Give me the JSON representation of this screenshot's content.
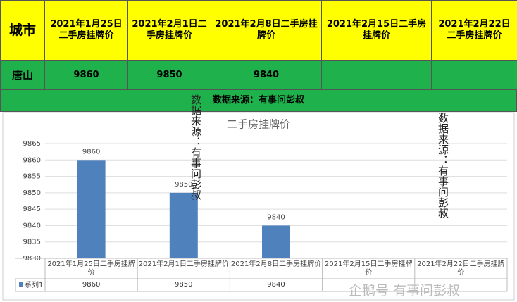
{
  "table": {
    "header": [
      "城市",
      "2021年1月25日二手房挂牌价",
      "2021年2月1日二手房挂牌价",
      "2021年2月8日二手房挂牌价",
      "2021年2月15日二手房挂牌价",
      "2021年2月22日二手房挂牌价"
    ],
    "city": "唐山",
    "values": [
      9860,
      9850,
      9840
    ],
    "source": "数据来源：有事问彭叔"
  },
  "chart_data": {
    "type": "bar",
    "title": "二手房挂牌价",
    "categories": [
      "2021年1月25日二手房挂牌价",
      "2021年2月1日二手房挂牌价",
      "2021年2月8日二手房挂牌价",
      "2021年2月15日二手房挂牌价",
      "2021年2月22日二手房挂牌价"
    ],
    "series": [
      {
        "name": "系列1",
        "color": "#4f81bd",
        "values": [
          9860,
          9850,
          9840,
          null,
          null
        ]
      }
    ],
    "ylim": [
      9830,
      9865
    ],
    "yticks": [
      9830,
      9835,
      9840,
      9845,
      9850,
      9855,
      9860,
      9865
    ],
    "grid": true
  },
  "watermark": "企鹅号 有事问彭叔"
}
